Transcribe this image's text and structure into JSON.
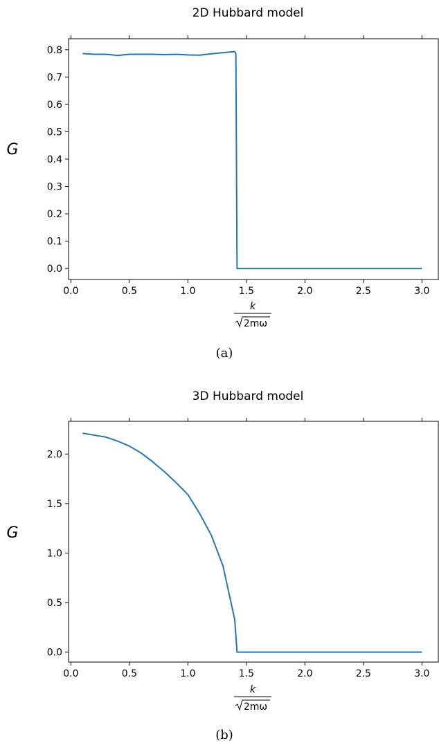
{
  "chart_data": [
    {
      "type": "line",
      "title": "2D Hubbard model",
      "ylabel": "G",
      "xlabel_numerator": "k",
      "xlabel_denominator": "2mω",
      "caption": "(a)",
      "xlim": [
        -0.02,
        3.14
      ],
      "ylim": [
        -0.04,
        0.84
      ],
      "xticks": [
        0.0,
        0.5,
        1.0,
        1.5,
        2.0,
        2.5,
        3.0
      ],
      "xtick_labels": [
        "0.0",
        "0.5",
        "1.0",
        "1.5",
        "2.0",
        "2.5",
        "3.0"
      ],
      "yticks": [
        0.0,
        0.1,
        0.2,
        0.3,
        0.4,
        0.5,
        0.6,
        0.7,
        0.8
      ],
      "ytick_labels": [
        "0.0",
        "0.1",
        "0.2",
        "0.3",
        "0.4",
        "0.5",
        "0.6",
        "0.7",
        "0.8"
      ],
      "series": [
        {
          "color": "#1f77b4",
          "x": [
            0.1,
            0.2,
            0.3,
            0.4,
            0.5,
            0.6,
            0.7,
            0.8,
            0.9,
            1.0,
            1.1,
            1.2,
            1.3,
            1.4,
            1.41,
            1.42,
            1.43,
            1.5,
            2.0,
            2.5,
            3.0
          ],
          "y": [
            0.786,
            0.783,
            0.783,
            0.779,
            0.783,
            0.783,
            0.783,
            0.782,
            0.783,
            0.781,
            0.78,
            0.785,
            0.789,
            0.793,
            0.785,
            0.0,
            0.0,
            0.0,
            0.0,
            0.0,
            0.0
          ]
        }
      ]
    },
    {
      "type": "line",
      "title": "3D Hubbard model",
      "ylabel": "G",
      "xlabel_numerator": "k",
      "xlabel_denominator": "2mω",
      "caption": "(b)",
      "xlim": [
        -0.02,
        3.14
      ],
      "ylim": [
        -0.1,
        2.33
      ],
      "xticks": [
        0.0,
        0.5,
        1.0,
        1.5,
        2.0,
        2.5,
        3.0
      ],
      "xtick_labels": [
        "0.0",
        "0.5",
        "1.0",
        "1.5",
        "2.0",
        "2.5",
        "3.0"
      ],
      "yticks": [
        0.0,
        0.5,
        1.0,
        1.5,
        2.0
      ],
      "ytick_labels": [
        "0.0",
        "0.5",
        "1.0",
        "1.5",
        "2.0"
      ],
      "series": [
        {
          "color": "#1f77b4",
          "x": [
            0.1,
            0.2,
            0.3,
            0.4,
            0.5,
            0.6,
            0.7,
            0.8,
            0.9,
            1.0,
            1.1,
            1.2,
            1.3,
            1.4,
            1.42,
            1.5,
            2.0,
            2.5,
            3.0
          ],
          "y": [
            2.21,
            2.19,
            2.17,
            2.13,
            2.08,
            2.01,
            1.92,
            1.82,
            1.71,
            1.59,
            1.4,
            1.18,
            0.87,
            0.33,
            0.0,
            0.0,
            0.0,
            0.0,
            0.0
          ]
        }
      ]
    }
  ]
}
